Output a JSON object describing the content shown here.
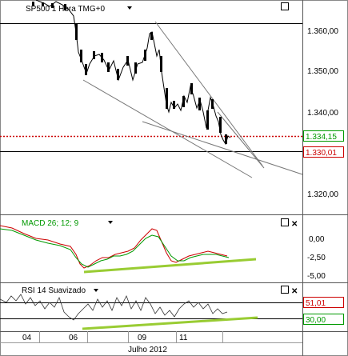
{
  "main": {
    "title": "SP500 1 Hora TMG+0",
    "price_axis": [
      "1.360,00",
      "1.350,00",
      "1.340,00",
      "1.320,00"
    ],
    "current_price": "1.334,15",
    "current_price_color": "#009900",
    "level_price": "1.330,01",
    "level_price_color": "#cc0000"
  },
  "macd": {
    "title": "MACD 26; 12; 9",
    "axis": [
      "0,00",
      "-2,50",
      "-5,00"
    ],
    "macd_color": "#cc0000",
    "signal_color": "#009900",
    "trend_color": "#99cc33"
  },
  "rsi": {
    "title": "RSI 14 Suavizado",
    "upper_value": "51,01",
    "upper_color": "#cc0000",
    "lower_value": "30,00",
    "lower_color": "#009900"
  },
  "time_axis": {
    "ticks": [
      "04",
      "06",
      "09",
      "11"
    ],
    "month_label": "Julho 2012"
  },
  "icons": {
    "restore": "window-restore-icon",
    "close": "close-icon",
    "dropdown": "dropdown-arrow-icon"
  }
}
